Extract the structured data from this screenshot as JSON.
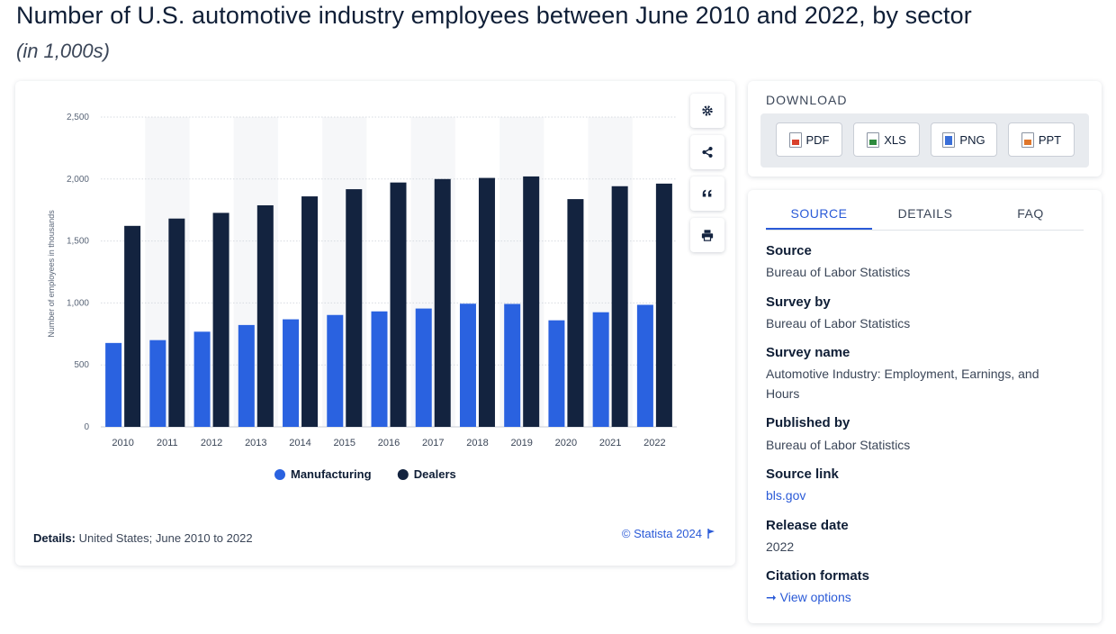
{
  "page": {
    "title": "Number of U.S. automotive industry employees between June 2010 and 2022, by sector",
    "subtitle": "(in 1,000s)"
  },
  "chart_data": {
    "type": "bar",
    "categories": [
      "2010",
      "2011",
      "2012",
      "2013",
      "2014",
      "2015",
      "2016",
      "2017",
      "2018",
      "2019",
      "2020",
      "2021",
      "2022"
    ],
    "series": [
      {
        "name": "Manufacturing",
        "color": "#2a62e0",
        "values": [
          677,
          700,
          768,
          822,
          868,
          903,
          932,
          955,
          994,
          992,
          860,
          925,
          985
        ]
      },
      {
        "name": "Dealers",
        "color": "#13233f",
        "values": [
          1622,
          1681,
          1727,
          1788,
          1860,
          1918,
          1972,
          2000,
          2009,
          2021,
          1838,
          1942,
          1963
        ]
      }
    ],
    "ylabel": "Number of employees in thousands",
    "ylim": [
      0,
      2500
    ],
    "yticks": [
      0,
      500,
      1000,
      1500,
      2000,
      2500
    ],
    "ytick_labels": [
      "0",
      "500",
      "1,000",
      "1,500",
      "2,000",
      "2,500"
    ],
    "grid": true,
    "legend_position": "bottom-center"
  },
  "chart_footer": {
    "details_label": "Details:",
    "details_text": "United States; June 2010 to 2022",
    "copyright": "© Statista 2024"
  },
  "toolbar": {
    "icons": [
      "gear-icon",
      "share-icon",
      "quote-icon",
      "print-icon"
    ]
  },
  "download": {
    "title": "DOWNLOAD",
    "buttons": [
      {
        "label": "PDF",
        "icon": "pdf-file-icon"
      },
      {
        "label": "XLS",
        "icon": "xls-file-icon"
      },
      {
        "label": "PNG",
        "icon": "png-file-icon"
      },
      {
        "label": "PPT",
        "icon": "ppt-file-icon"
      }
    ]
  },
  "source_panel": {
    "tabs": [
      "SOURCE",
      "DETAILS",
      "FAQ"
    ],
    "active_tab": "SOURCE",
    "source_label": "Source",
    "source_value": "Bureau of Labor Statistics",
    "survey_by_label": "Survey by",
    "survey_by_value": "Bureau of Labor Statistics",
    "survey_name_label": "Survey name",
    "survey_name_value": "Automotive Industry: Employment, Earnings, and Hours",
    "published_by_label": "Published by",
    "published_by_value": "Bureau of Labor Statistics",
    "source_link_label": "Source link",
    "source_link_value": "bls.gov",
    "release_date_label": "Release date",
    "release_date_value": "2022",
    "citation_label": "Citation formats",
    "citation_link": "View options",
    "accent_color": "#2a5ad7"
  }
}
